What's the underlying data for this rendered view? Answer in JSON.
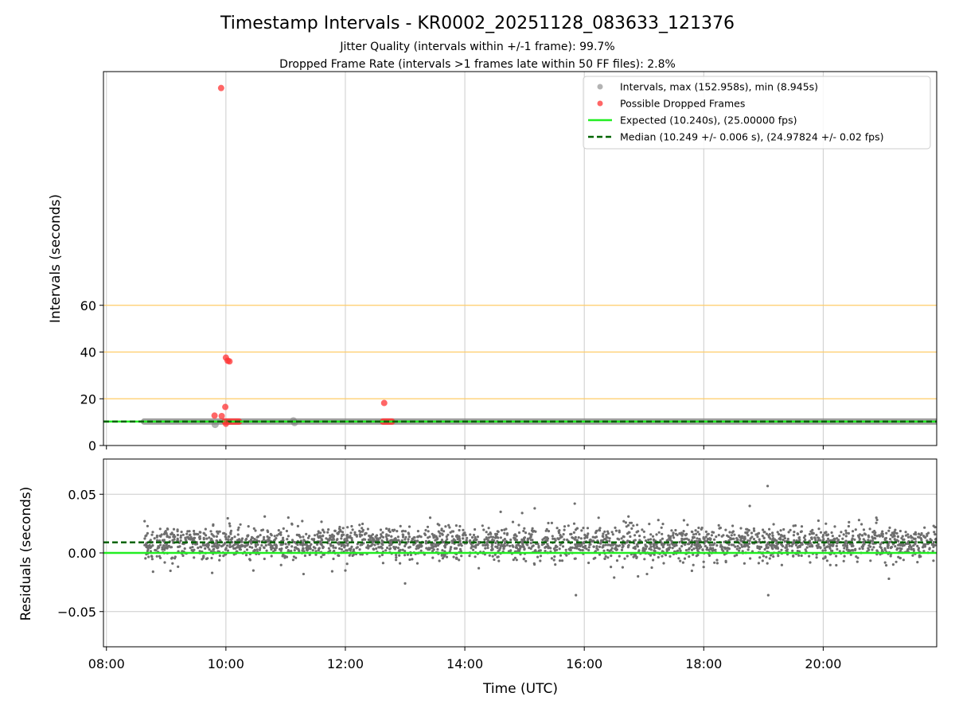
{
  "chart_data": [
    {
      "id": "intervals",
      "type": "scatter",
      "title": "Timestamp Intervals - KR0002_20251128_083633_121376",
      "subtitle_lines": [
        "Jitter Quality (intervals within +/-1 frame): 99.7%",
        "Dropped Frame Rate (intervals >1 frames late within 50 FF files): 2.8%"
      ],
      "ylabel": "Intervals (seconds)",
      "xlim": [
        7.95,
        21.9
      ],
      "ylim": [
        0,
        160
      ],
      "yticks": [
        0,
        20,
        40,
        60
      ],
      "ytick_labels": [
        "0",
        "20",
        "40",
        "60"
      ],
      "reference_lines": [
        20,
        40,
        60
      ],
      "expected": 10.24,
      "median": 10.249,
      "normal_range_hours": [
        8.63,
        21.9
      ],
      "normal_value": 10.24,
      "normal_extra": [
        {
          "x": 9.82,
          "y": 9.0
        },
        {
          "x": 11.13,
          "y": 10.6
        },
        {
          "x": 11.15,
          "y": 9.8
        }
      ],
      "dropped": [
        {
          "x": 9.92,
          "y": 152.958
        },
        {
          "x": 10.0,
          "y": 37.6
        },
        {
          "x": 10.03,
          "y": 36.3
        },
        {
          "x": 10.06,
          "y": 36.0
        },
        {
          "x": 9.99,
          "y": 16.5
        },
        {
          "x": 9.81,
          "y": 12.8
        },
        {
          "x": 9.93,
          "y": 12.6
        },
        {
          "x": 10.0,
          "y": 9.3
        },
        {
          "x": 12.65,
          "y": 18.2
        }
      ],
      "dropped_clusters": [
        [
          9.98,
          10.22
        ],
        [
          12.63,
          12.78
        ]
      ],
      "legend": {
        "location": "top-right",
        "entries": [
          {
            "label": "Intervals, max (152.958s), min (8.945s)",
            "kind": "gray-dot"
          },
          {
            "label": "Possible Dropped Frames",
            "kind": "red-dot"
          },
          {
            "label": "Expected (10.240s), (25.00000 fps)",
            "kind": "green-line"
          },
          {
            "label": "Median (10.249 +/- 0.006 s), (24.97824 +/- 0.02 fps)",
            "kind": "dashed-line"
          }
        ]
      }
    },
    {
      "id": "residuals",
      "type": "scatter",
      "xlabel": "Time (UTC)",
      "ylabel": "Residuals (seconds)",
      "xlim": [
        7.95,
        21.9
      ],
      "ylim": [
        -0.08,
        0.08
      ],
      "yticks": [
        -0.05,
        0,
        0.05
      ],
      "ytick_labels": [
        "−0.05",
        "0.00",
        "0.05"
      ],
      "xticks": [
        8,
        10,
        12,
        14,
        16,
        18,
        20
      ],
      "xtick_labels": [
        "08:00",
        "10:00",
        "12:00",
        "14:00",
        "16:00",
        "18:00",
        "20:00"
      ],
      "expected_residual": 0,
      "median_residual": 0.009,
      "center": 0.008,
      "spread": 0.007,
      "range_hours": [
        8.63,
        21.9
      ],
      "point_count": 2600,
      "outliers": [
        {
          "x": 19.07,
          "y": 0.057
        },
        {
          "x": 15.84,
          "y": 0.042
        },
        {
          "x": 18.77,
          "y": 0.04
        },
        {
          "x": 15.17,
          "y": 0.038
        },
        {
          "x": 14.6,
          "y": 0.035
        },
        {
          "x": 14.96,
          "y": 0.034
        },
        {
          "x": 15.86,
          "y": -0.036
        },
        {
          "x": 19.08,
          "y": -0.036
        },
        {
          "x": 21.1,
          "y": -0.022
        },
        {
          "x": 13.0,
          "y": -0.026
        },
        {
          "x": 12.0,
          "y": -0.015
        },
        {
          "x": 9.77,
          "y": -0.017
        },
        {
          "x": 11.3,
          "y": -0.018
        },
        {
          "x": 10.46,
          "y": -0.015
        },
        {
          "x": 16.5,
          "y": -0.021
        },
        {
          "x": 16.9,
          "y": -0.02
        },
        {
          "x": 20.6,
          "y": 0.028
        },
        {
          "x": 20.89,
          "y": 0.03
        },
        {
          "x": 10.06,
          "y": 0.025
        },
        {
          "x": 10.65,
          "y": 0.031
        },
        {
          "x": 17.05,
          "y": -0.018
        },
        {
          "x": 16.74,
          "y": 0.031
        },
        {
          "x": 13.42,
          "y": 0.03
        },
        {
          "x": 17.24,
          "y": 0.028
        }
      ]
    }
  ],
  "colors": {
    "gray": "#808080",
    "red": "#ff3333",
    "expected": "#22ee22",
    "median": "#006400",
    "reference": "#ffcc66",
    "grid": "#cccccc"
  }
}
